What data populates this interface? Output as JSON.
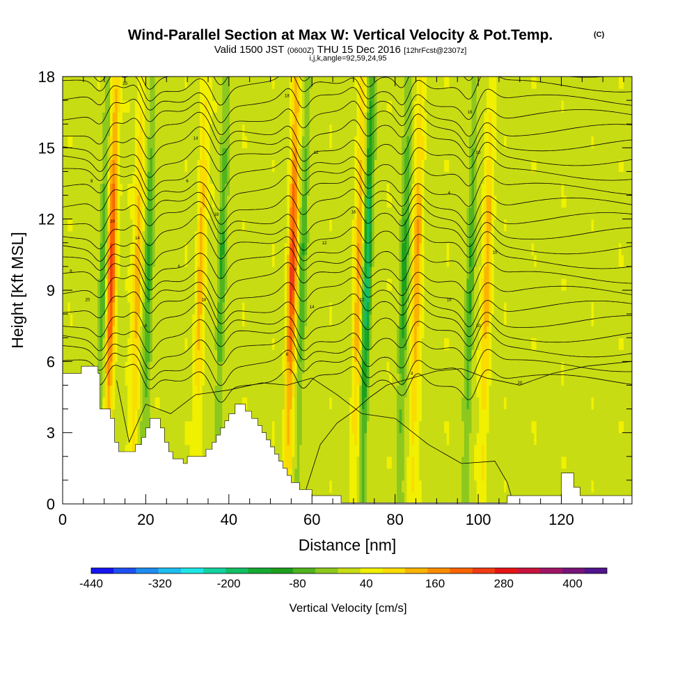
{
  "title": {
    "main": "Wind-Parallel Section at Max W: Vertical Velocity & Pot.Temp.",
    "copyright": "(C)",
    "valid_prefix": "Valid 1500 JST",
    "valid_utc": "(0600Z)",
    "valid_date": "THU 15 Dec 2016",
    "forecast": "[12hrFcst@2307z]",
    "indices": "i,j,k,angle=92,59,24,95"
  },
  "chart_data": {
    "type": "heatmap",
    "xlabel": "Distance [nm]",
    "ylabel": "Height [Kft MSL]",
    "xlim": [
      0,
      137
    ],
    "ylim": [
      0,
      18
    ],
    "x_ticks": [
      0,
      20,
      40,
      60,
      80,
      100,
      120
    ],
    "y_ticks": [
      0,
      3,
      6,
      9,
      12,
      15,
      18
    ],
    "colorbar": {
      "title": "Vertical Velocity [cm/s]",
      "tick_labels": [
        "-440",
        "-320",
        "-200",
        "-80",
        "40",
        "160",
        "280",
        "400"
      ],
      "tick_values": [
        -440,
        -320,
        -200,
        -80,
        40,
        160,
        280,
        400
      ],
      "range": [
        -440,
        460
      ],
      "step": 40,
      "colors": [
        "#1414f0",
        "#1e50f0",
        "#1e8cf0",
        "#1ebef0",
        "#1ee6e6",
        "#14d2a0",
        "#14be64",
        "#14aa32",
        "#1ea01e",
        "#50b41e",
        "#8cc81e",
        "#c8dc14",
        "#f0f000",
        "#fadc00",
        "#fab400",
        "#fa8c00",
        "#fa6400",
        "#f03c14",
        "#e61414",
        "#c8143c",
        "#a01464",
        "#781478",
        "#50148c"
      ]
    },
    "updraft_axes_nm": [
      11.5,
      17.8,
      33,
      55,
      71,
      85,
      102
    ],
    "downdraft_axes_nm": [
      9.5,
      20.5,
      38,
      57.5,
      73,
      82,
      98
    ],
    "peak_updraft_cm_s": 240,
    "peak_downdraft_cm_s": -230,
    "theta_contour_labels": [
      "20",
      "18",
      "16",
      "14",
      "12",
      "10",
      "8",
      "6",
      "4"
    ],
    "terrain_kft": [
      [
        0,
        5.5
      ],
      [
        4.5,
        5.5
      ],
      [
        4.5,
        5.8
      ],
      [
        8.5,
        5.8
      ],
      [
        8.5,
        5.5
      ],
      [
        9,
        5.5
      ],
      [
        9,
        4
      ],
      [
        11.5,
        4
      ],
      [
        11.5,
        3.6
      ],
      [
        12.5,
        3.6
      ],
      [
        12.5,
        2.6
      ],
      [
        13.5,
        2.6
      ],
      [
        13.5,
        2.2
      ],
      [
        17.5,
        2.2
      ],
      [
        17.5,
        2.5
      ],
      [
        19,
        2.5
      ],
      [
        19,
        2.8
      ],
      [
        20,
        2.8
      ],
      [
        20,
        3.2
      ],
      [
        21,
        3.2
      ],
      [
        21,
        3.6
      ],
      [
        23.5,
        3.6
      ],
      [
        23.5,
        3.2
      ],
      [
        24.5,
        3.2
      ],
      [
        24.5,
        2.6
      ],
      [
        25.5,
        2.6
      ],
      [
        25.5,
        2.2
      ],
      [
        26.5,
        2.2
      ],
      [
        26.5,
        1.9
      ],
      [
        29,
        1.9
      ],
      [
        29,
        1.7
      ],
      [
        30,
        1.7
      ],
      [
        30,
        2
      ],
      [
        34.5,
        2
      ],
      [
        34.5,
        2.3
      ],
      [
        36,
        2.3
      ],
      [
        36,
        2.6
      ],
      [
        37,
        2.6
      ],
      [
        37,
        2.9
      ],
      [
        38,
        2.9
      ],
      [
        38,
        3.2
      ],
      [
        39,
        3.2
      ],
      [
        39,
        3.5
      ],
      [
        40,
        3.5
      ],
      [
        40,
        3.8
      ],
      [
        41.5,
        3.8
      ],
      [
        41.5,
        4.2
      ],
      [
        44,
        4.2
      ],
      [
        44,
        3.9
      ],
      [
        45.5,
        3.9
      ],
      [
        45.5,
        3.6
      ],
      [
        47,
        3.6
      ],
      [
        47,
        3.3
      ],
      [
        48,
        3.3
      ],
      [
        48,
        3
      ],
      [
        49,
        3
      ],
      [
        49,
        2.7
      ],
      [
        50,
        2.7
      ],
      [
        50,
        2.4
      ],
      [
        51,
        2.4
      ],
      [
        51,
        2.1
      ],
      [
        52,
        2.1
      ],
      [
        52,
        1.8
      ],
      [
        53,
        1.8
      ],
      [
        53,
        1.5
      ],
      [
        54,
        1.5
      ],
      [
        54,
        1.2
      ],
      [
        55,
        1.2
      ],
      [
        55,
        0.9
      ],
      [
        57,
        0.9
      ],
      [
        57,
        0.6
      ],
      [
        60,
        0.6
      ],
      [
        60,
        0.35
      ],
      [
        67,
        0.35
      ],
      [
        67,
        0.05
      ],
      [
        107,
        0.05
      ],
      [
        107,
        0.35
      ],
      [
        120,
        0.35
      ],
      [
        120,
        1.3
      ],
      [
        123,
        1.3
      ],
      [
        123,
        0.7
      ],
      [
        124.5,
        0.7
      ],
      [
        124.5,
        0.35
      ],
      [
        137,
        0.35
      ]
    ]
  }
}
